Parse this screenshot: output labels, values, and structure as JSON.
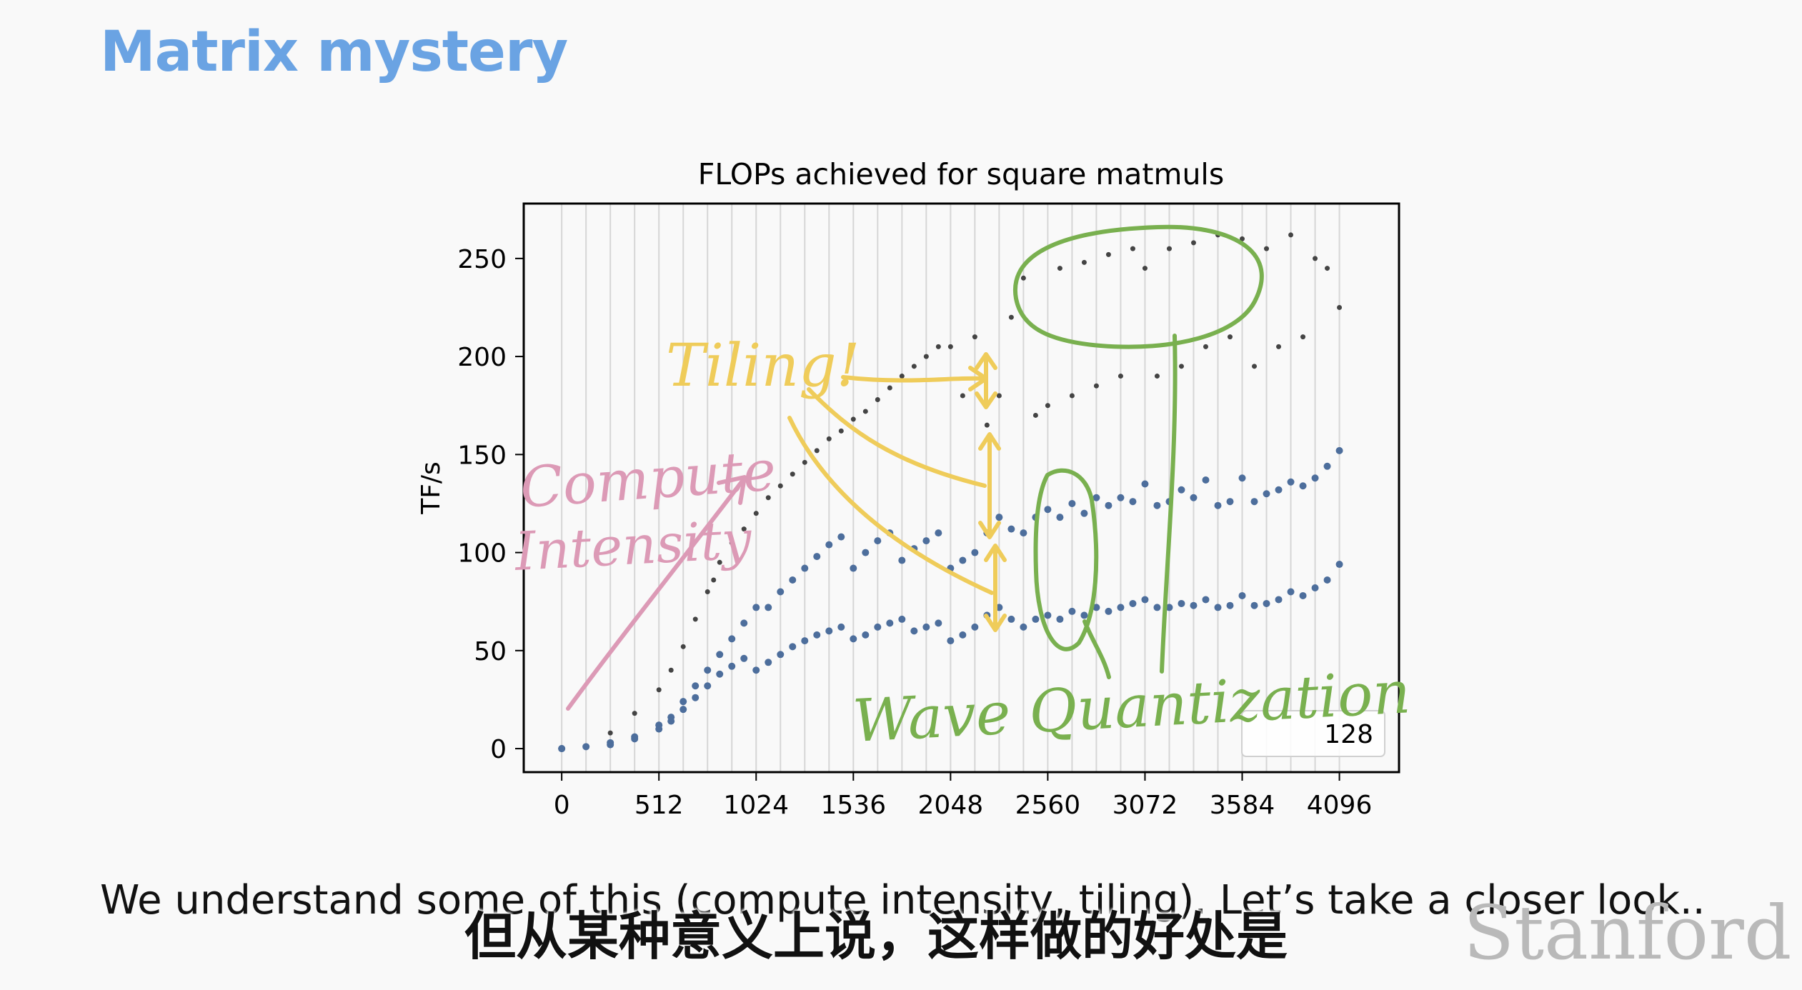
{
  "slide": {
    "title": "Matrix mystery",
    "caption": "We understand some of this (compute intensity, tiling). Let’s take a closer look..",
    "subtitle": "但从某种意义上说，这样做的好处是",
    "logo": "Stanford"
  },
  "annotations": {
    "tiling": "Tiling!",
    "compute": "Compute",
    "intensity": "Intensity",
    "wave": "Wave Quantization",
    "colors": {
      "yellow": "#efcc5a",
      "pink": "#dc9ab6",
      "green": "#79b04f"
    }
  },
  "chart_data": {
    "type": "scatter",
    "title": "FLOPs achieved for square matmuls",
    "ylabel": "TF/s",
    "xlabel": "",
    "xlim": [
      -200,
      4410
    ],
    "ylim": [
      -12,
      278
    ],
    "xticks": [
      0,
      512,
      1024,
      1536,
      2048,
      2560,
      3072,
      3584,
      4096
    ],
    "yticks": [
      0,
      50,
      100,
      150,
      200,
      250
    ],
    "grid": "vertical lines every 128",
    "legend": {
      "label": "128",
      "placement": "bottom-right"
    },
    "colors": {
      "gray": "#444444",
      "blue": "#4d6e9c"
    },
    "series": [
      {
        "color": "gray",
        "x": [
          0,
          256,
          384,
          512,
          576,
          640,
          704,
          768,
          800,
          832,
          896,
          960,
          1024,
          1088,
          1152,
          1216,
          1280,
          1344,
          1408,
          1472,
          1536,
          1600,
          1664,
          1728,
          1792,
          1856,
          1920,
          1984,
          2048,
          2112,
          2176,
          2240,
          2304,
          2368,
          2432,
          2496,
          2560,
          2624,
          2688,
          2752,
          2816,
          2880,
          2944,
          3008,
          3072,
          3136,
          3200,
          3264,
          3328,
          3392,
          3456,
          3520,
          3584,
          3648,
          3712,
          3776,
          3840,
          3904,
          3968,
          4032,
          4096
        ],
        "y": [
          0,
          8,
          18,
          30,
          40,
          52,
          66,
          80,
          86,
          95,
          105,
          112,
          120,
          128,
          134,
          140,
          146,
          152,
          158,
          162,
          168,
          172,
          178,
          184,
          190,
          195,
          200,
          205,
          205,
          180,
          210,
          165,
          180,
          220,
          240,
          170,
          175,
          245,
          180,
          248,
          185,
          252,
          190,
          255,
          245,
          190,
          255,
          195,
          258,
          205,
          262,
          210,
          260,
          195,
          255,
          205,
          262,
          210,
          250,
          245,
          225
        ]
      },
      {
        "color": "blue",
        "x": [
          0,
          128,
          256,
          384,
          512,
          576,
          640,
          704,
          768,
          832,
          896,
          960,
          1024,
          1088,
          1152,
          1216,
          1280,
          1344,
          1408,
          1472,
          1536,
          1600,
          1664,
          1728,
          1792,
          1856,
          1920,
          1984,
          2048,
          2112,
          2176,
          2240,
          2304,
          2368,
          2432,
          2496,
          2560,
          2624,
          2688,
          2752,
          2816,
          2880,
          2944,
          3008,
          3072,
          3136,
          3200,
          3264,
          3328,
          3392,
          3456,
          3520,
          3584,
          3648,
          3712,
          3776,
          3840,
          3904,
          3968,
          4032,
          4096
        ],
        "y": [
          0,
          1,
          3,
          6,
          12,
          16,
          24,
          32,
          40,
          48,
          56,
          64,
          72,
          72,
          80,
          86,
          92,
          98,
          104,
          108,
          92,
          100,
          106,
          110,
          96,
          102,
          106,
          110,
          92,
          96,
          100,
          110,
          118,
          112,
          110,
          118,
          122,
          118,
          125,
          120,
          128,
          124,
          128,
          126,
          135,
          124,
          126,
          132,
          128,
          137,
          124,
          126,
          138,
          126,
          130,
          132,
          136,
          134,
          138,
          144,
          152
        ]
      },
      {
        "color": "blue",
        "x": [
          0,
          256,
          384,
          512,
          576,
          640,
          704,
          768,
          832,
          896,
          960,
          1024,
          1088,
          1152,
          1216,
          1280,
          1344,
          1408,
          1472,
          1536,
          1600,
          1664,
          1728,
          1792,
          1856,
          1920,
          1984,
          2048,
          2112,
          2176,
          2240,
          2304,
          2368,
          2432,
          2496,
          2560,
          2624,
          2688,
          2752,
          2816,
          2880,
          2944,
          3008,
          3072,
          3136,
          3200,
          3264,
          3328,
          3392,
          3456,
          3520,
          3584,
          3648,
          3712,
          3776,
          3840,
          3904,
          3968,
          4032,
          4096
        ],
        "y": [
          0,
          2,
          5,
          10,
          14,
          20,
          26,
          32,
          38,
          42,
          46,
          40,
          44,
          48,
          52,
          55,
          58,
          60,
          62,
          56,
          58,
          62,
          64,
          66,
          60,
          62,
          64,
          55,
          58,
          62,
          68,
          72,
          66,
          62,
          66,
          68,
          66,
          70,
          68,
          72,
          70,
          72,
          74,
          76,
          72,
          72,
          74,
          73,
          76,
          72,
          73,
          78,
          73,
          74,
          76,
          80,
          78,
          82,
          86,
          94
        ]
      }
    ]
  }
}
